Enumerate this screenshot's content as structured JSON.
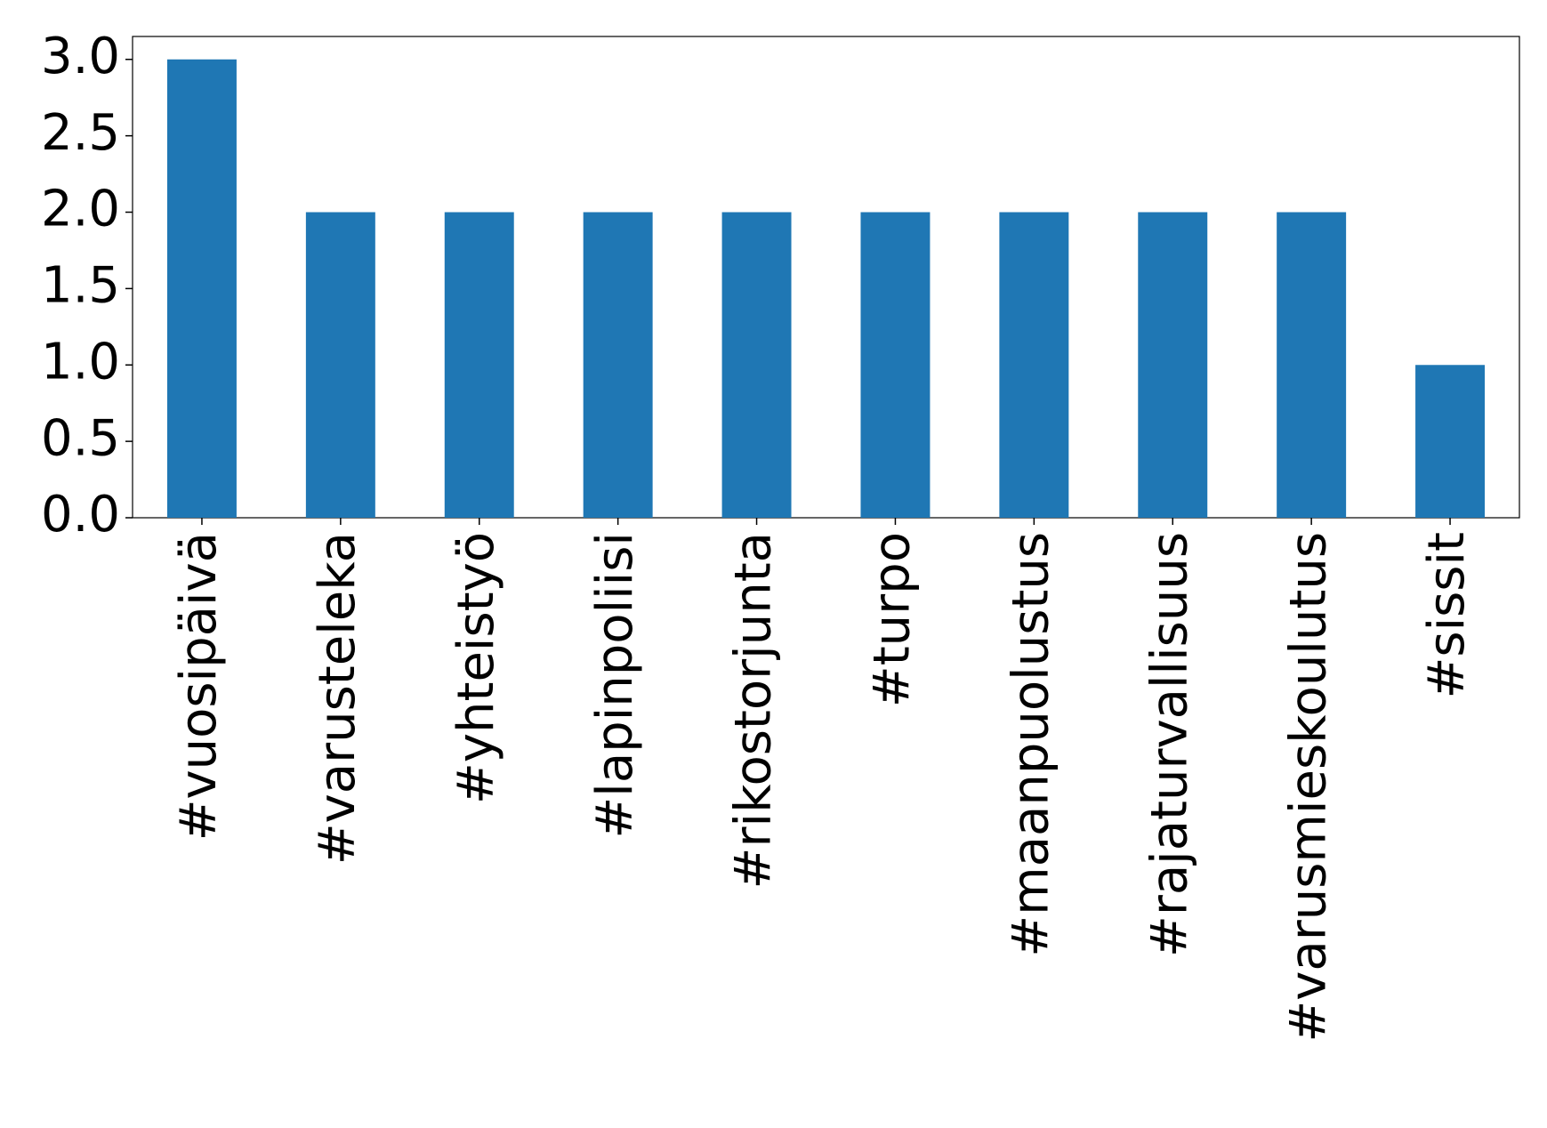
{
  "chart_data": {
    "type": "bar",
    "categories": [
      "#vuosipäivä",
      "#varusteleka",
      "#yhteistyö",
      "#lapinpoliisi",
      "#rikostorjunta",
      "#turpo",
      "#maanpuolustus",
      "#rajaturvallisuus",
      "#varusmieskoulutus",
      "#sissit"
    ],
    "values": [
      3,
      2,
      2,
      2,
      2,
      2,
      2,
      2,
      2,
      1
    ],
    "color": "#1f77b4",
    "ylim": [
      0,
      3.15
    ],
    "yticks": [
      {
        "value": 0,
        "label": "0.0"
      },
      0.5,
      {
        "value": 1,
        "label": "1.0"
      },
      1.5,
      {
        "value": 2,
        "label": "2.0"
      },
      2.5,
      {
        "value": 3,
        "label": "3.0"
      }
    ],
    "grid": false
  }
}
